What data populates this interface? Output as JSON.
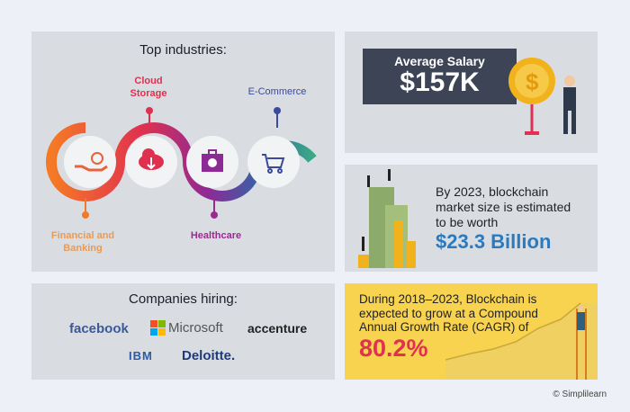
{
  "industries": {
    "title": "Top industries:",
    "items": [
      {
        "label": "Financial and Banking",
        "color": "#f07a2a"
      },
      {
        "label": "Cloud Storage",
        "color": "#e0304f"
      },
      {
        "label": "Healthcare",
        "color": "#9b2a8f"
      },
      {
        "label": "E-Commerce",
        "color": "#3b4a9c"
      }
    ]
  },
  "salary": {
    "label": "Average Salary",
    "value": "$157K"
  },
  "market": {
    "text": "By 2023, blockchain market size is estimated to be worth",
    "value": "$23.3 Billion"
  },
  "companies": {
    "title": "Companies hiring:",
    "logos": [
      "facebook",
      "Microsoft",
      "accenture",
      "IBM",
      "Deloitte."
    ]
  },
  "cagr": {
    "text": "During 2018–2023, Blockchain is expected to grow at a Compound Annual Growth Rate (CAGR) of",
    "value": "80.2%"
  },
  "footer": {
    "copyright": "© Simplilearn"
  }
}
